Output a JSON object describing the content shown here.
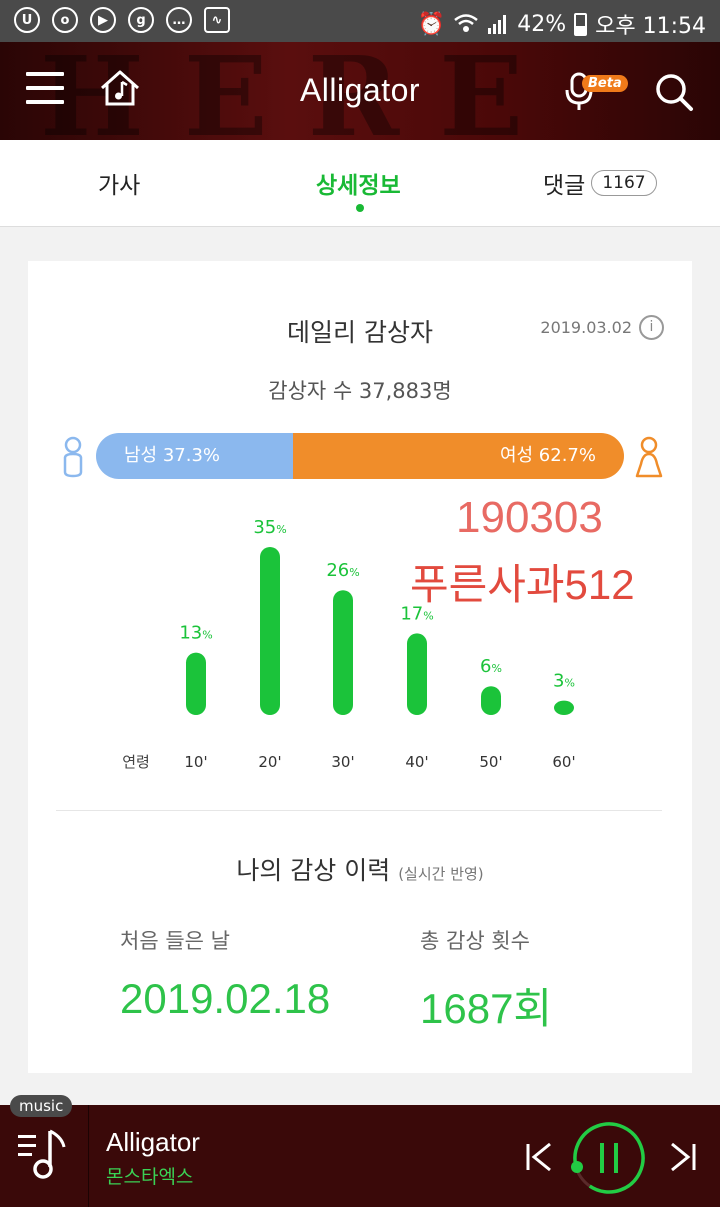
{
  "status_bar": {
    "battery": "42%",
    "time": "오후 11:54",
    "icons": [
      "uplus-icon",
      "message-bubble-icon",
      "play-icon",
      "g-icon",
      "talk-icon",
      "pulse-icon",
      "alarm-icon",
      "wifi-icon",
      "signal-icon",
      "battery-icon"
    ]
  },
  "header": {
    "title": "Alligator",
    "beta_badge": "Beta",
    "icons": [
      "menu-icon",
      "home-music-icon",
      "microphone-icon",
      "search-icon"
    ]
  },
  "tabs": [
    {
      "label": "가사"
    },
    {
      "label": "상세정보",
      "active": true
    },
    {
      "label": "댓글",
      "badge": "1167"
    }
  ],
  "daily_listeners": {
    "title": "데일리 감상자",
    "date": "2019.03.02",
    "info_label": "i",
    "count_text": "감상자 수 37,883명",
    "male_label": "남성 37.3%",
    "female_label": "여성 62.7%",
    "male_share": 37.3,
    "colors": {
      "male": "#8bb8ee",
      "female": "#f08d2a",
      "accent": "#19b935"
    }
  },
  "overlay_text": {
    "line1": "190303",
    "line2": "푸른사과512"
  },
  "chart_data": {
    "type": "bar",
    "xlabel": "연령",
    "categories": [
      "10'",
      "20'",
      "30'",
      "40'",
      "50'",
      "60'"
    ],
    "values": [
      13,
      35,
      26,
      17,
      6,
      3
    ],
    "value_labels": [
      "13",
      "35",
      "26",
      "17",
      "6",
      "3"
    ],
    "unit": "%",
    "color": "#1bc33a"
  },
  "history": {
    "title": "나의 감상 이력",
    "subtitle": "(실시간 반영)",
    "first_label": "처음 들은 날",
    "first_value": "2019.02.18",
    "count_label": "총 감상 횟수",
    "count_value": "1687회"
  },
  "player": {
    "pill": "music",
    "title": "Alligator",
    "artist": "몬스타엑스",
    "progress": 0.1
  }
}
